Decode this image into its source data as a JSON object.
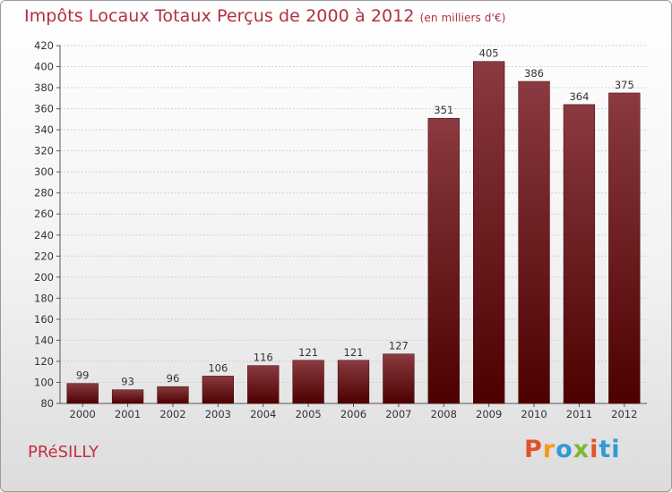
{
  "header": {
    "title": "Impôts Locaux Totaux Perçus de 2000 à 2012",
    "subtitle": "(en milliers d'€)"
  },
  "footer": {
    "commune": "PRéSILLY",
    "logo_letters": [
      "P",
      "r",
      "o",
      "x",
      "i",
      "ti"
    ]
  },
  "colors": {
    "bar_top": "#8a3a40",
    "bar_bottom": "#4d0000",
    "title": "#b03040"
  },
  "chart_data": {
    "type": "bar",
    "title": "Impôts Locaux Totaux Perçus de 2000 à 2012",
    "subtitle": "(en milliers d'€)",
    "categories": [
      "2000",
      "2001",
      "2002",
      "2003",
      "2004",
      "2005",
      "2006",
      "2007",
      "2008",
      "2009",
      "2010",
      "2011",
      "2012"
    ],
    "values": [
      99,
      93,
      96,
      106,
      116,
      121,
      121,
      127,
      351,
      405,
      386,
      364,
      375
    ],
    "ylim": [
      80,
      420
    ],
    "yticks": [
      80,
      100,
      120,
      140,
      160,
      180,
      200,
      220,
      240,
      260,
      280,
      300,
      320,
      340,
      360,
      380,
      400,
      420
    ],
    "grid": true,
    "legend": "none"
  }
}
